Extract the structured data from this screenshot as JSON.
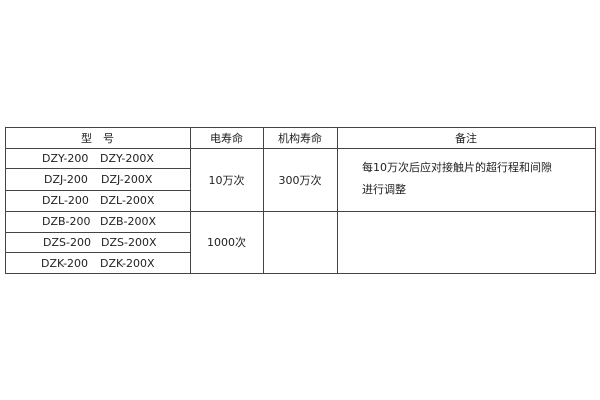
{
  "headers": {
    "model": "型　号",
    "electrical_life": "电寿命",
    "mechanical_life": "机构寿命",
    "remarks": "备注"
  },
  "rows": [
    {
      "model_a": "DZY-200",
      "model_b": "DZY-200X"
    },
    {
      "model_a": "DZJ-200",
      "model_b": "DZJ-200X"
    },
    {
      "model_a": "DZL-200",
      "model_b": "DZL-200X"
    },
    {
      "model_a": "DZB-200",
      "model_b": "DZB-200X"
    },
    {
      "model_a": "DZS-200",
      "model_b": "DZS-200X"
    },
    {
      "model_a": "DZK-200",
      "model_b": "DZK-200X"
    }
  ],
  "groups": [
    {
      "electrical_life": "10万次",
      "mechanical_life": "300万次",
      "remarks_line1": "每10万次后应对接触片的超行程和间隙",
      "remarks_line2": "进行调整"
    },
    {
      "electrical_life": "1000次",
      "mechanical_life": "",
      "remarks_line1": "",
      "remarks_line2": ""
    }
  ]
}
